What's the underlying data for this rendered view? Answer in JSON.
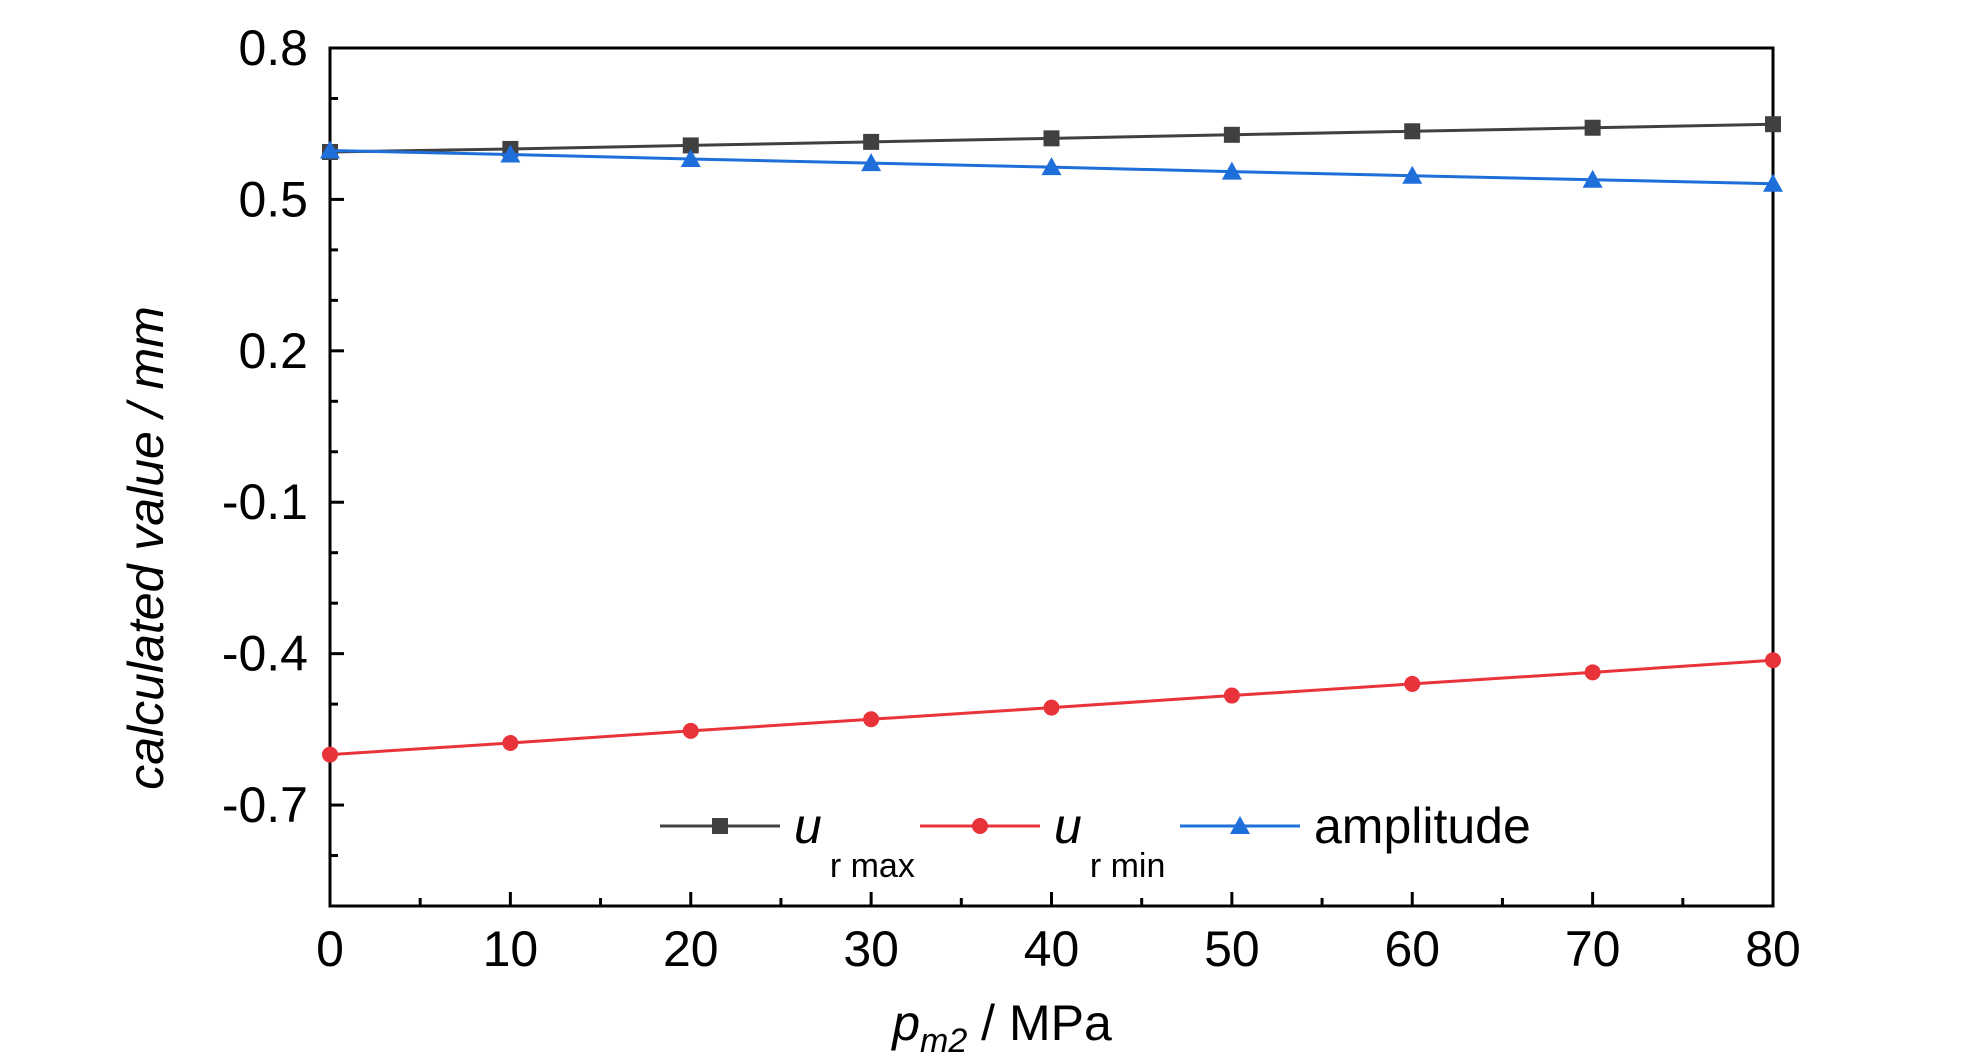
{
  "chart_data": {
    "type": "line",
    "x": [
      0,
      10,
      20,
      30,
      40,
      50,
      60,
      70,
      80
    ],
    "xlim": [
      0,
      80
    ],
    "ylim": [
      -0.9,
      0.8
    ],
    "x_ticks": [
      "0",
      "10",
      "20",
      "30",
      "40",
      "50",
      "60",
      "70",
      "80"
    ],
    "y_ticks": [
      "0.8",
      "0.5",
      "0.2",
      "-0.1",
      "-0.4",
      "-0.7"
    ],
    "y_tick_values": [
      0.8,
      0.5,
      0.2,
      -0.1,
      -0.4,
      -0.7
    ],
    "xlabel": {
      "main": "p",
      "sub": "m2",
      "suffix": " / MPa"
    },
    "ylabel": "calculated value / mm",
    "grid": false,
    "legend_position": "bottom-center",
    "series": [
      {
        "name": "u_r max",
        "label_main": "u",
        "label_sub": "r max",
        "marker": "square",
        "color": "#404040",
        "values": [
          0.594,
          0.6,
          0.607,
          0.614,
          0.621,
          0.628,
          0.635,
          0.642,
          0.649
        ]
      },
      {
        "name": "u_r min",
        "label_main": "u",
        "label_sub": "r min",
        "marker": "circle",
        "color": "#e8333a",
        "values": [
          -0.6,
          -0.577,
          -0.553,
          -0.53,
          -0.507,
          -0.483,
          -0.46,
          -0.437,
          -0.413
        ]
      },
      {
        "name": "amplitude",
        "label_main": "amplitude",
        "label_sub": "",
        "marker": "triangle",
        "color": "#1e6fd9",
        "values": [
          0.597,
          0.589,
          0.58,
          0.572,
          0.564,
          0.555,
          0.547,
          0.539,
          0.531
        ]
      }
    ]
  }
}
